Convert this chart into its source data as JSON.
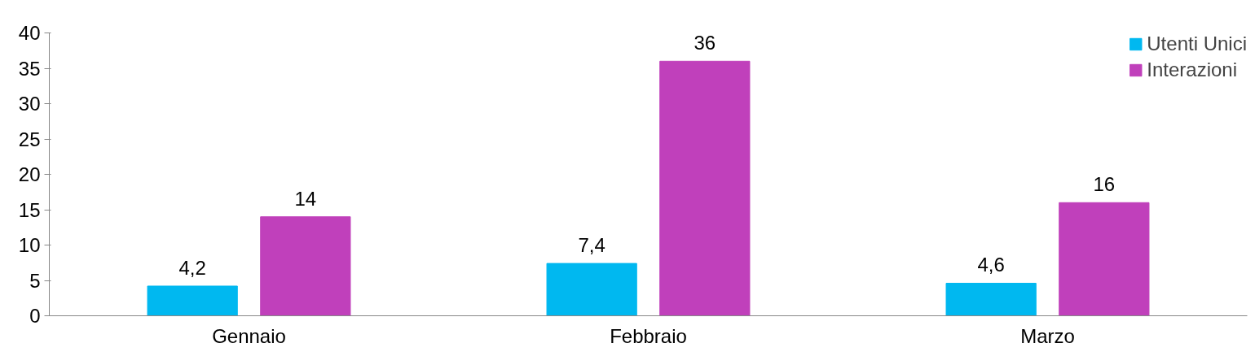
{
  "chart_data": {
    "type": "bar",
    "categories": [
      "Gennaio",
      "Febbraio",
      "Marzo"
    ],
    "series": [
      {
        "name": "Utenti Unici",
        "color": "#00b8f0",
        "values": [
          4.2,
          7.4,
          4.6
        ],
        "value_labels": [
          "4,2",
          "7,4",
          "4,6"
        ]
      },
      {
        "name": "Interazioni",
        "color": "#c040bb",
        "values": [
          14,
          36,
          16
        ],
        "value_labels": [
          "14",
          "36",
          "16"
        ]
      }
    ],
    "ylim": [
      0,
      40
    ],
    "yticks": [
      0,
      5,
      10,
      15,
      20,
      25,
      30,
      35,
      40
    ],
    "grid": false,
    "legend": "top right"
  }
}
